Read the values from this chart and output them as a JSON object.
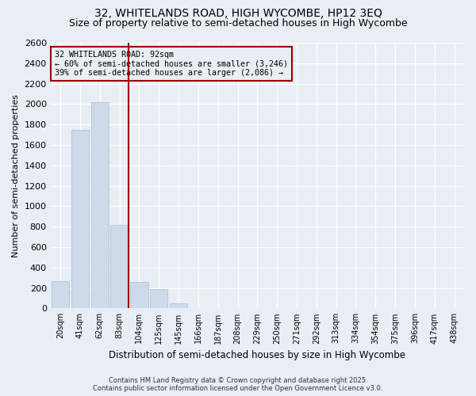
{
  "title1": "32, WHITELANDS ROAD, HIGH WYCOMBE, HP12 3EQ",
  "title2": "Size of property relative to semi-detached houses in High Wycombe",
  "xlabel": "Distribution of semi-detached houses by size in High Wycombe",
  "ylabel": "Number of semi-detached properties",
  "categories": [
    "20sqm",
    "41sqm",
    "62sqm",
    "83sqm",
    "104sqm",
    "125sqm",
    "145sqm",
    "166sqm",
    "187sqm",
    "208sqm",
    "229sqm",
    "250sqm",
    "271sqm",
    "292sqm",
    "313sqm",
    "334sqm",
    "354sqm",
    "375sqm",
    "396sqm",
    "417sqm",
    "438sqm"
  ],
  "values": [
    270,
    1750,
    2020,
    820,
    260,
    190,
    50,
    0,
    0,
    0,
    0,
    0,
    0,
    0,
    0,
    0,
    0,
    0,
    0,
    0,
    0
  ],
  "bar_color": "#ccdaea",
  "bar_edge_color": "#aabdce",
  "vline_x_index": 3,
  "vline_color": "#990000",
  "annotation_title": "32 WHITELANDS ROAD: 92sqm",
  "annotation_line1": "← 60% of semi-detached houses are smaller (3,246)",
  "annotation_line2": "39% of semi-detached houses are larger (2,086) →",
  "annotation_box_edge_color": "#990000",
  "ylim": [
    0,
    2600
  ],
  "yticks": [
    0,
    200,
    400,
    600,
    800,
    1000,
    1200,
    1400,
    1600,
    1800,
    2000,
    2200,
    2400,
    2600
  ],
  "footnote1": "Contains HM Land Registry data © Crown copyright and database right 2025.",
  "footnote2": "Contains public sector information licensed under the Open Government Licence v3.0.",
  "bg_color": "#e8eef4",
  "plot_bg_color": "#e8eef4",
  "title_fontsize": 10,
  "subtitle_fontsize": 9,
  "ylabel_full": "Number of semi-detached properties"
}
